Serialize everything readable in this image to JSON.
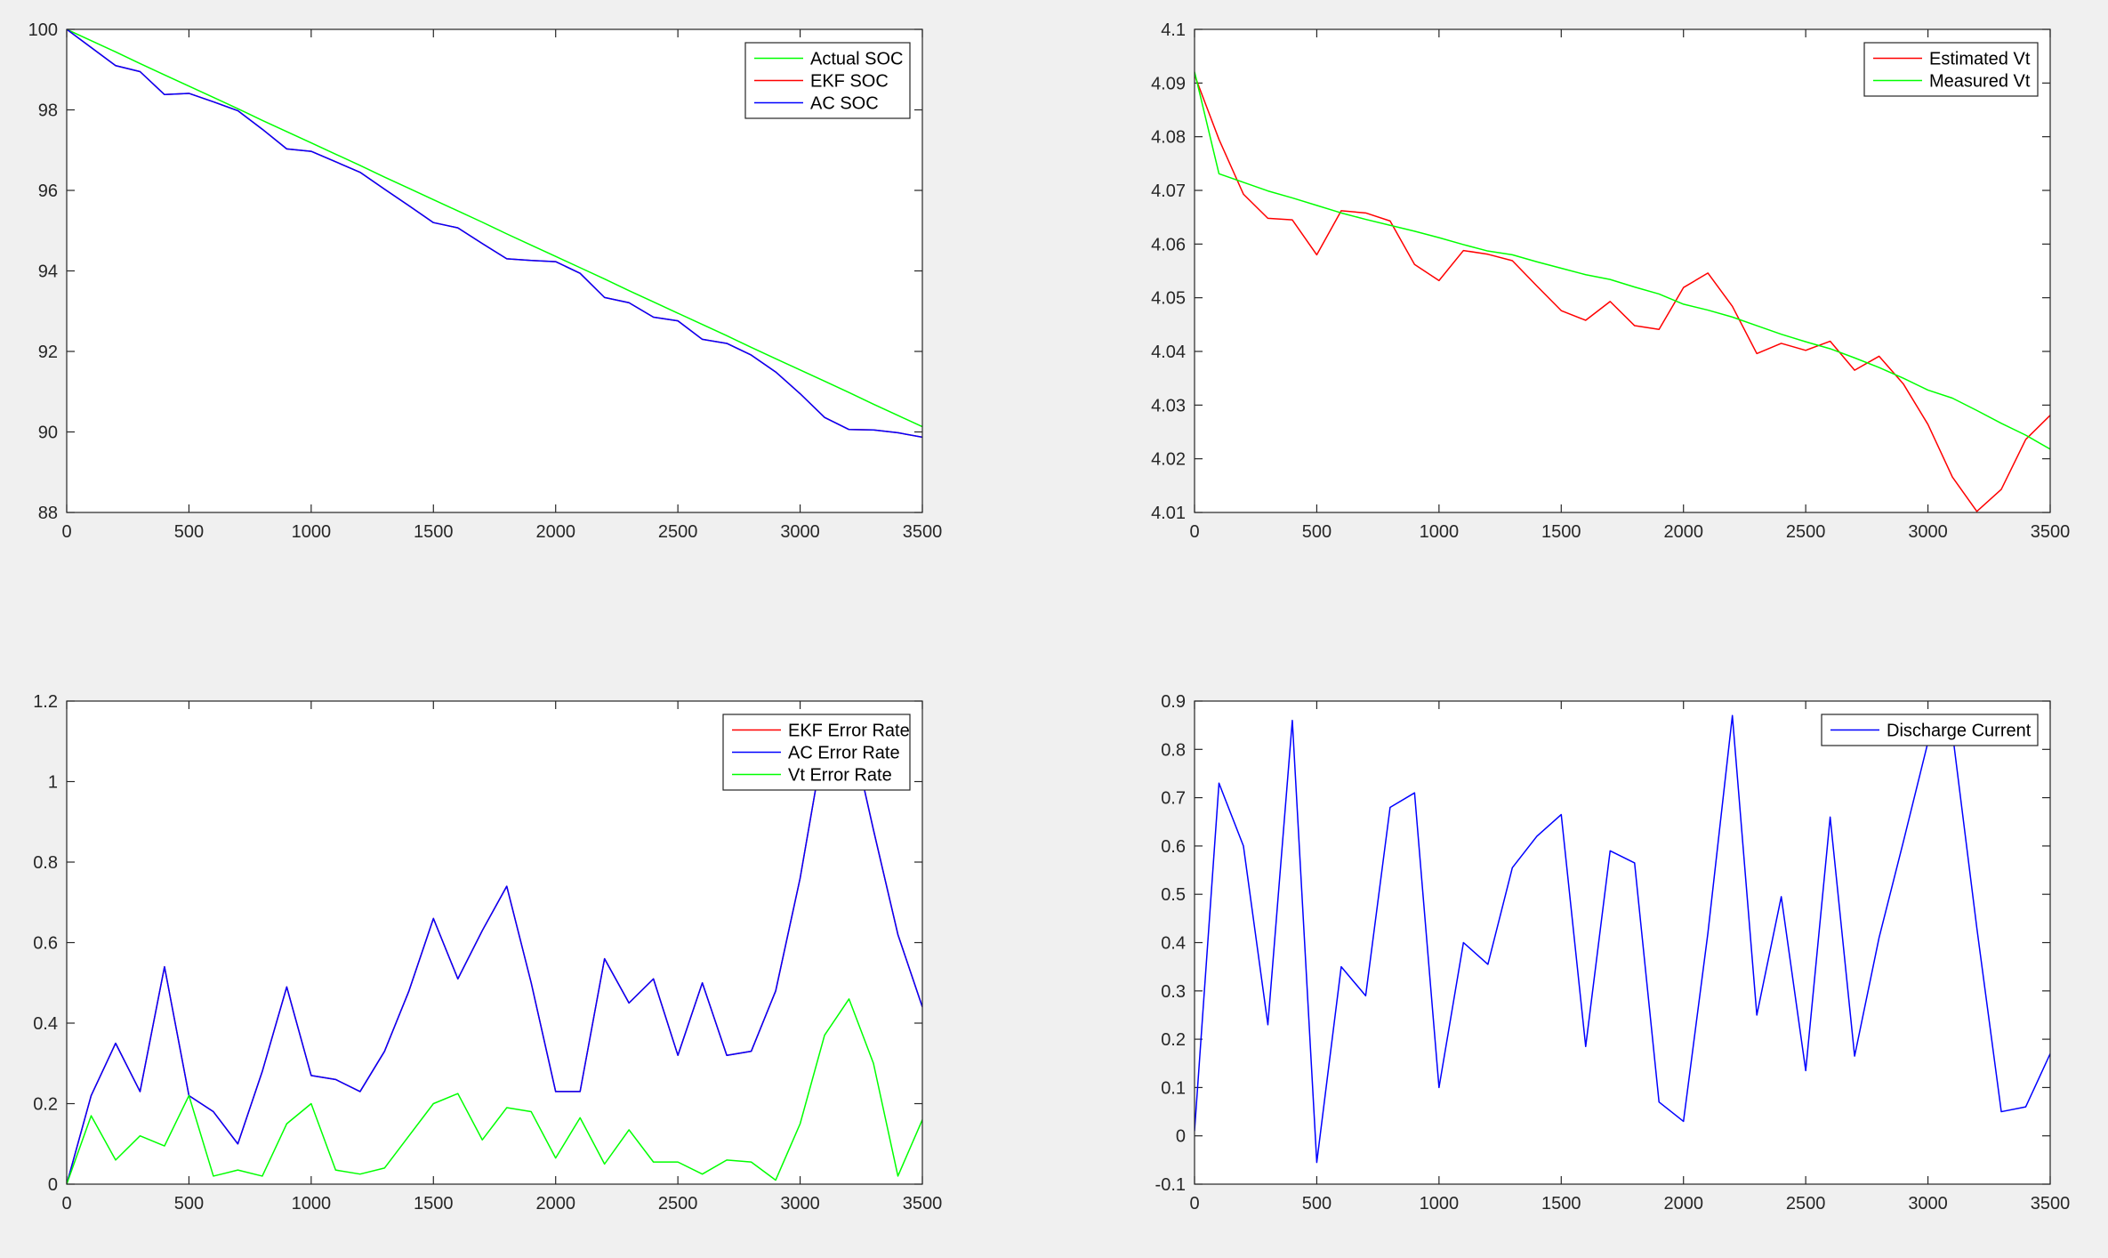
{
  "chart_data": [
    {
      "type": "line",
      "xlim": [
        0,
        3500
      ],
      "ylim": [
        88,
        100
      ],
      "xticks": [
        0,
        500,
        1000,
        1500,
        2000,
        2500,
        3000,
        3500
      ],
      "yticks": [
        88,
        90,
        92,
        94,
        96,
        98,
        100
      ],
      "grid": false,
      "legend": "top-right",
      "x": [
        0,
        100,
        200,
        300,
        400,
        500,
        600,
        700,
        800,
        900,
        1000,
        1100,
        1200,
        1300,
        1400,
        1500,
        1600,
        1700,
        1800,
        1900,
        2000,
        2100,
        2200,
        2300,
        2400,
        2500,
        2600,
        2700,
        2800,
        2900,
        3000,
        3100,
        3200,
        3300,
        3400,
        3500
      ],
      "series": [
        {
          "name": "Actual SOC",
          "color": "#00ff00",
          "values": [
            100,
            99.72,
            99.44,
            99.15,
            98.87,
            98.59,
            98.31,
            98.03,
            97.74,
            97.46,
            97.18,
            96.9,
            96.62,
            96.33,
            96.05,
            95.77,
            95.49,
            95.21,
            94.92,
            94.64,
            94.36,
            94.08,
            93.8,
            93.51,
            93.23,
            92.95,
            92.67,
            92.39,
            92.1,
            91.82,
            91.54,
            91.26,
            90.98,
            90.69,
            90.41,
            90.13
          ]
        },
        {
          "name": "EKF SOC",
          "color": "#ff0000",
          "values": [
            100,
            99.55,
            99.1,
            98.95,
            98.38,
            98.41,
            98.2,
            97.98,
            97.52,
            97.03,
            96.97,
            96.71,
            96.45,
            96.03,
            95.62,
            95.2,
            95.07,
            94.68,
            94.3,
            94.26,
            94.23,
            93.94,
            93.34,
            93.21,
            92.85,
            92.76,
            92.3,
            92.2,
            91.91,
            91.49,
            90.95,
            90.36,
            90.06,
            90.05,
            89.98,
            89.87
          ]
        },
        {
          "name": "AC SOC",
          "color": "#0000ff",
          "values": [
            100,
            99.55,
            99.1,
            98.95,
            98.38,
            98.41,
            98.2,
            97.98,
            97.52,
            97.03,
            96.97,
            96.71,
            96.45,
            96.03,
            95.62,
            95.2,
            95.07,
            94.68,
            94.3,
            94.26,
            94.23,
            93.94,
            93.34,
            93.21,
            92.85,
            92.76,
            92.3,
            92.2,
            91.91,
            91.49,
            90.95,
            90.36,
            90.06,
            90.05,
            89.98,
            89.87
          ]
        }
      ]
    },
    {
      "type": "line",
      "xlim": [
        0,
        3500
      ],
      "ylim": [
        4.01,
        4.1
      ],
      "xticks": [
        0,
        500,
        1000,
        1500,
        2000,
        2500,
        3000,
        3500
      ],
      "yticks": [
        "4.01",
        "4.02",
        "4.03",
        "4.04",
        "4.05",
        "4.06",
        "4.07",
        "4.08",
        "4.09",
        "4.1"
      ],
      "grid": false,
      "legend": "top-right",
      "x": [
        0,
        100,
        200,
        300,
        400,
        500,
        600,
        700,
        800,
        900,
        1000,
        1100,
        1200,
        1300,
        1400,
        1500,
        1600,
        1700,
        1800,
        1900,
        2000,
        2100,
        2200,
        2300,
        2400,
        2500,
        2600,
        2700,
        2800,
        2900,
        3000,
        3100,
        3200,
        3300,
        3400,
        3500
      ],
      "series": [
        {
          "name": "Estimated Vt",
          "color": "#ff0000",
          "values": [
            4.0915,
            4.0795,
            4.0693,
            4.0648,
            4.0645,
            4.058,
            4.0662,
            4.0658,
            4.0643,
            4.0562,
            4.0532,
            4.0588,
            4.0581,
            4.0569,
            4.0522,
            4.0476,
            4.0458,
            4.0493,
            4.0448,
            4.0441,
            4.0519,
            4.0546,
            4.0484,
            4.0396,
            4.0415,
            4.0402,
            4.0419,
            4.0365,
            4.0391,
            4.0339,
            4.0264,
            4.0166,
            4.0102,
            4.0143,
            4.0236,
            4.0281
          ]
        },
        {
          "name": "Measured Vt",
          "color": "#00ff00",
          "values": [
            4.0921,
            4.0731,
            4.0715,
            4.0699,
            4.0686,
            4.0672,
            4.0658,
            4.0646,
            4.0635,
            4.0624,
            4.0612,
            4.0599,
            4.0587,
            4.058,
            4.0567,
            4.0555,
            4.0543,
            4.0534,
            4.052,
            4.0507,
            4.0488,
            4.0477,
            4.0464,
            4.0448,
            4.0432,
            4.0418,
            4.0405,
            4.0388,
            4.037,
            4.035,
            4.0328,
            4.0313,
            4.029,
            4.0266,
            4.0244,
            4.0218
          ]
        }
      ]
    },
    {
      "type": "line",
      "xlim": [
        0,
        3500
      ],
      "ylim": [
        0,
        1.2
      ],
      "xticks": [
        0,
        500,
        1000,
        1500,
        2000,
        2500,
        3000,
        3500
      ],
      "yticks": [
        "0",
        "0.2",
        "0.4",
        "0.6",
        "0.8",
        "1",
        "1.2"
      ],
      "grid": false,
      "legend": "top-right",
      "x": [
        0,
        100,
        200,
        300,
        400,
        500,
        600,
        700,
        800,
        900,
        1000,
        1100,
        1200,
        1300,
        1400,
        1500,
        1600,
        1700,
        1800,
        1900,
        2000,
        2100,
        2200,
        2300,
        2400,
        2500,
        2600,
        2700,
        2800,
        2900,
        3000,
        3100,
        3200,
        3300,
        3400,
        3500
      ],
      "series": [
        {
          "name": "EKF Error Rate",
          "color": "#ff0000",
          "values": [
            0,
            0.22,
            0.35,
            0.23,
            0.54,
            0.22,
            0.18,
            0.1,
            0.28,
            0.49,
            0.27,
            0.26,
            0.23,
            0.33,
            0.48,
            0.66,
            0.51,
            0.63,
            0.74,
            0.5,
            0.23,
            0.23,
            0.56,
            0.45,
            0.51,
            0.32,
            0.5,
            0.32,
            0.33,
            0.48,
            0.76,
            1.11,
            1.15,
            0.88,
            0.62,
            0.44
          ]
        },
        {
          "name": "AC Error Rate",
          "color": "#0000ff",
          "values": [
            0,
            0.22,
            0.35,
            0.23,
            0.54,
            0.22,
            0.18,
            0.1,
            0.28,
            0.49,
            0.27,
            0.26,
            0.23,
            0.33,
            0.48,
            0.66,
            0.51,
            0.63,
            0.74,
            0.5,
            0.23,
            0.23,
            0.56,
            0.45,
            0.51,
            0.32,
            0.5,
            0.32,
            0.33,
            0.48,
            0.76,
            1.11,
            1.15,
            0.88,
            0.62,
            0.44
          ]
        },
        {
          "name": "Vt Error Rate",
          "color": "#00ff00",
          "values": [
            0,
            0.17,
            0.06,
            0.12,
            0.095,
            0.22,
            0.02,
            0.035,
            0.02,
            0.15,
            0.2,
            0.035,
            0.025,
            0.04,
            0.12,
            0.2,
            0.225,
            0.11,
            0.19,
            0.18,
            0.065,
            0.165,
            0.05,
            0.135,
            0.055,
            0.055,
            0.025,
            0.06,
            0.055,
            0.01,
            0.15,
            0.37,
            0.46,
            0.3,
            0.02,
            0.16
          ]
        }
      ]
    },
    {
      "type": "line",
      "xlim": [
        0,
        3500
      ],
      "ylim": [
        -0.1,
        0.9
      ],
      "xticks": [
        0,
        500,
        1000,
        1500,
        2000,
        2500,
        3000,
        3500
      ],
      "yticks": [
        "-0.1",
        "0",
        "0.1",
        "0.2",
        "0.3",
        "0.4",
        "0.5",
        "0.6",
        "0.7",
        "0.8",
        "0.9"
      ],
      "grid": false,
      "legend": "top-right",
      "x": [
        0,
        100,
        200,
        300,
        400,
        500,
        600,
        700,
        800,
        900,
        1000,
        1100,
        1200,
        1300,
        1400,
        1500,
        1600,
        1700,
        1800,
        1900,
        2000,
        2100,
        2200,
        2300,
        2400,
        2500,
        2600,
        2700,
        2800,
        2900,
        3000,
        3100,
        3200,
        3300,
        3400,
        3500
      ],
      "series": [
        {
          "name": "Discharge Current",
          "color": "#0000ff",
          "values": [
            0.01,
            0.73,
            0.6,
            0.23,
            0.86,
            -0.055,
            0.35,
            0.29,
            0.68,
            0.71,
            0.1,
            0.4,
            0.355,
            0.555,
            0.62,
            0.665,
            0.185,
            0.59,
            0.565,
            0.07,
            0.03,
            0.42,
            0.87,
            0.25,
            0.495,
            0.135,
            0.66,
            0.165,
            0.41,
            0.61,
            0.815,
            0.835,
            0.43,
            0.05,
            0.06,
            0.17
          ]
        }
      ]
    }
  ]
}
